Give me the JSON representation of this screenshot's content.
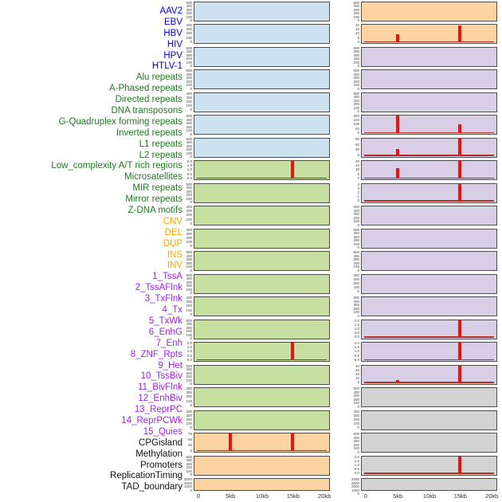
{
  "figure": {
    "description": "Density of genomic features in 20kb windows, 44 tracks in two panel columns",
    "x_axis_ticks": [
      "0",
      "5kb",
      "10kb",
      "15kb",
      "20kb"
    ]
  },
  "colors": {
    "label_groups": {
      "virus": "#0000dd",
      "repeat": "#1f7a1f",
      "sv": "#ffa500",
      "chromatin": "#a020f0",
      "other": "#111111"
    },
    "panel_groups": {
      "blue": "#cce2ee",
      "green": "#c7dfa1",
      "orange": "#fcd3a1",
      "purple": "#d8cee6",
      "gray": "#d3d3d3"
    },
    "spike": "#ec130e",
    "baseline": "#b03020",
    "panel_border": "#4d4d4d",
    "tick_text": "#444444",
    "axis_text": "#333333"
  },
  "chart_data": {
    "type": "bar",
    "layout": "small-multiples, 2 panel columns of 22 rows, column-major track order",
    "x": {
      "ticks": [
        "0",
        "5kb",
        "10kb",
        "15kb",
        "20kb"
      ],
      "range_kb": [
        0,
        20
      ],
      "tick_positions_pct": [
        3.5,
        27,
        50.3,
        73,
        96
      ]
    },
    "spike_x_positions_kb": [
      5,
      15
    ],
    "tracks": [
      {
        "name": "AAV2",
        "group": "virus",
        "column": "left",
        "row": 1,
        "bg": "blue",
        "y_ticks": [
          "500",
          "400",
          "300",
          "200",
          "100",
          "0"
        ],
        "baseline": false,
        "spikes": []
      },
      {
        "name": "EBV",
        "group": "virus",
        "column": "left",
        "row": 2,
        "bg": "blue",
        "y_ticks": [
          "400",
          "300",
          "200",
          "100",
          "0"
        ],
        "baseline": false,
        "spikes": []
      },
      {
        "name": "HBV",
        "group": "virus",
        "column": "left",
        "row": 3,
        "bg": "blue",
        "y_ticks": [
          "500",
          "400",
          "300",
          "200",
          "100",
          "0"
        ],
        "baseline": false,
        "spikes": []
      },
      {
        "name": "HIV",
        "group": "virus",
        "column": "left",
        "row": 4,
        "bg": "blue",
        "y_ticks": [
          "500",
          "400",
          "300",
          "200",
          "100",
          "0"
        ],
        "baseline": false,
        "spikes": []
      },
      {
        "name": "HPV",
        "group": "virus",
        "column": "left",
        "row": 5,
        "bg": "blue",
        "y_ticks": [
          "400",
          "300",
          "200",
          "100",
          "0"
        ],
        "baseline": false,
        "spikes": []
      },
      {
        "name": "HTLV-1",
        "group": "virus",
        "column": "left",
        "row": 6,
        "bg": "blue",
        "y_ticks": [
          "500",
          "400",
          "300",
          "200",
          "100",
          "0"
        ],
        "baseline": false,
        "spikes": []
      },
      {
        "name": "Alu repeats",
        "group": "repeat",
        "column": "left",
        "row": 7,
        "bg": "blue",
        "y_ticks": [
          "500",
          "400",
          "300",
          "200",
          "100",
          "0"
        ],
        "baseline": false,
        "spikes": []
      },
      {
        "name": "A-Phased repeats",
        "group": "repeat",
        "column": "left",
        "row": 8,
        "bg": "green",
        "y_ticks": [
          "2.0",
          "1.5",
          "1.0",
          "0.5",
          "0.0"
        ],
        "baseline": true,
        "spikes": [
          {
            "x_kb": 15,
            "value": 2.0,
            "height_frac": 1.0
          }
        ]
      },
      {
        "name": "Directed repeats",
        "group": "repeat",
        "column": "left",
        "row": 9,
        "bg": "green",
        "y_ticks": [
          "500",
          "400",
          "300",
          "200",
          "100",
          "0"
        ],
        "baseline": false,
        "spikes": []
      },
      {
        "name": "DNA transposons",
        "group": "repeat",
        "column": "left",
        "row": 10,
        "bg": "green",
        "y_ticks": [
          "400",
          "300",
          "200",
          "100",
          "0"
        ],
        "baseline": false,
        "spikes": []
      },
      {
        "name": "G-Quadruplex forming repeats",
        "group": "repeat",
        "column": "left",
        "row": 11,
        "bg": "green",
        "y_ticks": [
          "400",
          "300",
          "200",
          "100",
          "0"
        ],
        "baseline": false,
        "spikes": []
      },
      {
        "name": "Inverted repeats",
        "group": "repeat",
        "column": "left",
        "row": 12,
        "bg": "green",
        "y_ticks": [
          "500",
          "400",
          "300",
          "200",
          "100",
          "0"
        ],
        "baseline": false,
        "spikes": []
      },
      {
        "name": "L1 repeats",
        "group": "repeat",
        "column": "left",
        "row": 13,
        "bg": "green",
        "y_ticks": [
          "500",
          "400",
          "300",
          "200",
          "100",
          "0"
        ],
        "baseline": false,
        "spikes": []
      },
      {
        "name": "L2 repeats",
        "group": "repeat",
        "column": "left",
        "row": 14,
        "bg": "green",
        "y_ticks": [
          "400",
          "300",
          "200",
          "100",
          "0"
        ],
        "baseline": false,
        "spikes": []
      },
      {
        "name": "Low_complexity A/T rich regions",
        "group": "repeat",
        "column": "left",
        "row": 15,
        "bg": "green",
        "y_ticks": [
          "500",
          "400",
          "300",
          "200",
          "100",
          "0"
        ],
        "baseline": false,
        "spikes": []
      },
      {
        "name": "Microsatellites",
        "group": "repeat",
        "column": "left",
        "row": 16,
        "bg": "green",
        "y_ticks": [
          "2.0",
          "1.5",
          "1.0",
          "0.5",
          "0.0"
        ],
        "baseline": true,
        "spikes": [
          {
            "x_kb": 15,
            "value": 2.0,
            "height_frac": 1.0
          }
        ]
      },
      {
        "name": "MIR repeats",
        "group": "repeat",
        "column": "left",
        "row": 17,
        "bg": "green",
        "y_ticks": [
          "500",
          "400",
          "300",
          "200",
          "100",
          "0"
        ],
        "baseline": false,
        "spikes": []
      },
      {
        "name": "Mirror repeats",
        "group": "repeat",
        "column": "left",
        "row": 18,
        "bg": "green",
        "y_ticks": [
          "400",
          "300",
          "200",
          "100",
          "0"
        ],
        "baseline": false,
        "spikes": []
      },
      {
        "name": "Z-DNA motifs",
        "group": "repeat",
        "column": "left",
        "row": 19,
        "bg": "green",
        "y_ticks": [
          "400",
          "300",
          "200",
          "100",
          "0"
        ],
        "baseline": false,
        "spikes": []
      },
      {
        "name": "CNV",
        "group": "sv",
        "column": "left",
        "row": 20,
        "bg": "orange",
        "y_ticks": [
          "75",
          "50",
          "25",
          "0"
        ],
        "baseline": true,
        "spikes": [
          {
            "x_kb": 5,
            "value": 75,
            "height_frac": 1.0
          },
          {
            "x_kb": 15,
            "value": 75,
            "height_frac": 1.0
          }
        ]
      },
      {
        "name": "DEL",
        "group": "sv",
        "column": "left",
        "row": 21,
        "bg": "orange",
        "y_ticks": [
          "500",
          "400",
          "300",
          "200",
          "100",
          "0"
        ],
        "baseline": false,
        "spikes": []
      },
      {
        "name": "DUP",
        "group": "sv",
        "column": "left",
        "row": 22,
        "bg": "orange",
        "y_ticks": [
          "3000",
          "2000",
          "1000",
          "0"
        ],
        "baseline": false,
        "spikes": []
      },
      {
        "name": "INS",
        "group": "sv",
        "column": "right",
        "row": 1,
        "bg": "orange",
        "y_ticks": [
          "500",
          "400",
          "300",
          "200",
          "100",
          "0"
        ],
        "baseline": false,
        "spikes": []
      },
      {
        "name": "INV",
        "group": "sv",
        "column": "right",
        "row": 2,
        "bg": "orange",
        "y_ticks": [
          "20",
          "15",
          "10",
          "5",
          "0"
        ],
        "baseline": true,
        "spikes": [
          {
            "x_kb": 5,
            "value": 10,
            "height_frac": 0.48
          },
          {
            "x_kb": 15,
            "value": 19,
            "height_frac": 0.95
          }
        ]
      },
      {
        "name": "1_TssA",
        "group": "chromatin",
        "column": "right",
        "row": 3,
        "bg": "purple",
        "y_ticks": [
          "500",
          "400",
          "300",
          "200",
          "100",
          "0"
        ],
        "baseline": false,
        "spikes": []
      },
      {
        "name": "2_TssAFlnk",
        "group": "chromatin",
        "column": "right",
        "row": 4,
        "bg": "purple",
        "y_ticks": [
          "500",
          "400",
          "300",
          "200",
          "100",
          "0"
        ],
        "baseline": false,
        "spikes": []
      },
      {
        "name": "3_TxFlnk",
        "group": "chromatin",
        "column": "right",
        "row": 5,
        "bg": "purple",
        "y_ticks": [
          "500",
          "400",
          "300",
          "200",
          "100",
          "0"
        ],
        "baseline": false,
        "spikes": []
      },
      {
        "name": "4_Tx",
        "group": "chromatin",
        "column": "right",
        "row": 6,
        "bg": "purple",
        "y_ticks": [
          "200",
          "150",
          "100",
          "50",
          "0"
        ],
        "baseline": true,
        "spikes": [
          {
            "x_kb": 5,
            "value": 200,
            "height_frac": 1.0
          },
          {
            "x_kb": 15,
            "value": 105,
            "height_frac": 0.52
          }
        ]
      },
      {
        "name": "5_TxWk",
        "group": "chromatin",
        "column": "right",
        "row": 7,
        "bg": "purple",
        "y_ticks": [
          "90",
          "60",
          "30",
          "0"
        ],
        "baseline": true,
        "spikes": [
          {
            "x_kb": 5,
            "value": 35,
            "height_frac": 0.38
          },
          {
            "x_kb": 15,
            "value": 92,
            "height_frac": 1.0
          }
        ]
      },
      {
        "name": "6_EnhG",
        "group": "chromatin",
        "column": "right",
        "row": 8,
        "bg": "purple",
        "y_ticks": [
          "20",
          "15",
          "10",
          "5",
          "0"
        ],
        "baseline": true,
        "spikes": [
          {
            "x_kb": 5,
            "value": 12,
            "height_frac": 0.6
          },
          {
            "x_kb": 15,
            "value": 20,
            "height_frac": 1.0
          }
        ]
      },
      {
        "name": "7_Enh",
        "group": "chromatin",
        "column": "right",
        "row": 9,
        "bg": "purple",
        "y_ticks": [
          "4",
          "3",
          "2",
          "1",
          "0"
        ],
        "baseline": true,
        "baseline_thick": true,
        "spikes": [
          {
            "x_kb": 15,
            "value": 4,
            "height_frac": 1.0
          }
        ]
      },
      {
        "name": "8_ZNF_Rpts",
        "group": "chromatin",
        "column": "right",
        "row": 10,
        "bg": "purple",
        "y_ticks": [
          "500",
          "400",
          "300",
          "200",
          "100",
          "0"
        ],
        "baseline": false,
        "spikes": []
      },
      {
        "name": "9_Het",
        "group": "chromatin",
        "column": "right",
        "row": 11,
        "bg": "purple",
        "y_ticks": [
          "500",
          "400",
          "300",
          "200",
          "100",
          "0"
        ],
        "baseline": false,
        "spikes": []
      },
      {
        "name": "10_TssBiv",
        "group": "chromatin",
        "column": "right",
        "row": 12,
        "bg": "purple",
        "y_ticks": [
          "500",
          "400",
          "300",
          "200",
          "100",
          "0"
        ],
        "baseline": false,
        "spikes": []
      },
      {
        "name": "11_BivFlnk",
        "group": "chromatin",
        "column": "right",
        "row": 13,
        "bg": "purple",
        "y_ticks": [
          "400",
          "300",
          "200",
          "100",
          "0"
        ],
        "baseline": false,
        "spikes": []
      },
      {
        "name": "12_EnhBiv",
        "group": "chromatin",
        "column": "right",
        "row": 14,
        "bg": "purple",
        "y_ticks": [
          "500",
          "400",
          "300",
          "200",
          "100",
          "0"
        ],
        "baseline": false,
        "spikes": []
      },
      {
        "name": "13_ReprPC",
        "group": "chromatin",
        "column": "right",
        "row": 15,
        "bg": "purple",
        "y_ticks": [
          "2.0",
          "1.5",
          "1.0",
          "0.5",
          "0.0"
        ],
        "baseline": true,
        "spikes": [
          {
            "x_kb": 15,
            "value": 2.0,
            "height_frac": 1.0
          }
        ]
      },
      {
        "name": "14_ReprPCWk",
        "group": "chromatin",
        "column": "right",
        "row": 16,
        "bg": "purple",
        "y_ticks": [
          "2.0",
          "1.5",
          "1.0",
          "0.5",
          "0.0"
        ],
        "baseline": true,
        "spikes": [
          {
            "x_kb": 15,
            "value": 2.0,
            "height_frac": 1.0
          }
        ]
      },
      {
        "name": "15_Quies",
        "group": "chromatin",
        "column": "right",
        "row": 17,
        "bg": "purple",
        "y_ticks": [
          "40",
          "30",
          "20",
          "10",
          "0"
        ],
        "baseline": true,
        "spikes": [
          {
            "x_kb": 5,
            "value": 7,
            "height_frac": 0.17
          },
          {
            "x_kb": 15,
            "value": 40,
            "height_frac": 1.0
          }
        ]
      },
      {
        "name": "CPGisland",
        "group": "other",
        "column": "right",
        "row": 18,
        "bg": "gray",
        "y_ticks": [
          "500",
          "400",
          "300",
          "200",
          "100",
          "0"
        ],
        "baseline": false,
        "spikes": []
      },
      {
        "name": "Methylation",
        "group": "other",
        "column": "right",
        "row": 19,
        "bg": "gray",
        "y_ticks": [
          "400",
          "300",
          "200",
          "100",
          "0"
        ],
        "baseline": false,
        "spikes": []
      },
      {
        "name": "Promoters",
        "group": "other",
        "column": "right",
        "row": 20,
        "bg": "gray",
        "y_ticks": [
          "500",
          "400",
          "300",
          "200",
          "100",
          "0"
        ],
        "baseline": false,
        "spikes": []
      },
      {
        "name": "ReplicationTiming",
        "group": "other",
        "column": "right",
        "row": 21,
        "bg": "gray",
        "y_ticks": [
          "2.0",
          "1.5",
          "1.0",
          "0.5",
          "0.0"
        ],
        "baseline": true,
        "spikes": [
          {
            "x_kb": 15,
            "value": 2.0,
            "height_frac": 1.0
          }
        ]
      },
      {
        "name": "TAD_boundary",
        "group": "other",
        "column": "right",
        "row": 22,
        "bg": "gray",
        "y_ticks": [
          "4000",
          "3000",
          "2000",
          "1000",
          "0"
        ],
        "baseline": false,
        "spikes": []
      }
    ]
  }
}
